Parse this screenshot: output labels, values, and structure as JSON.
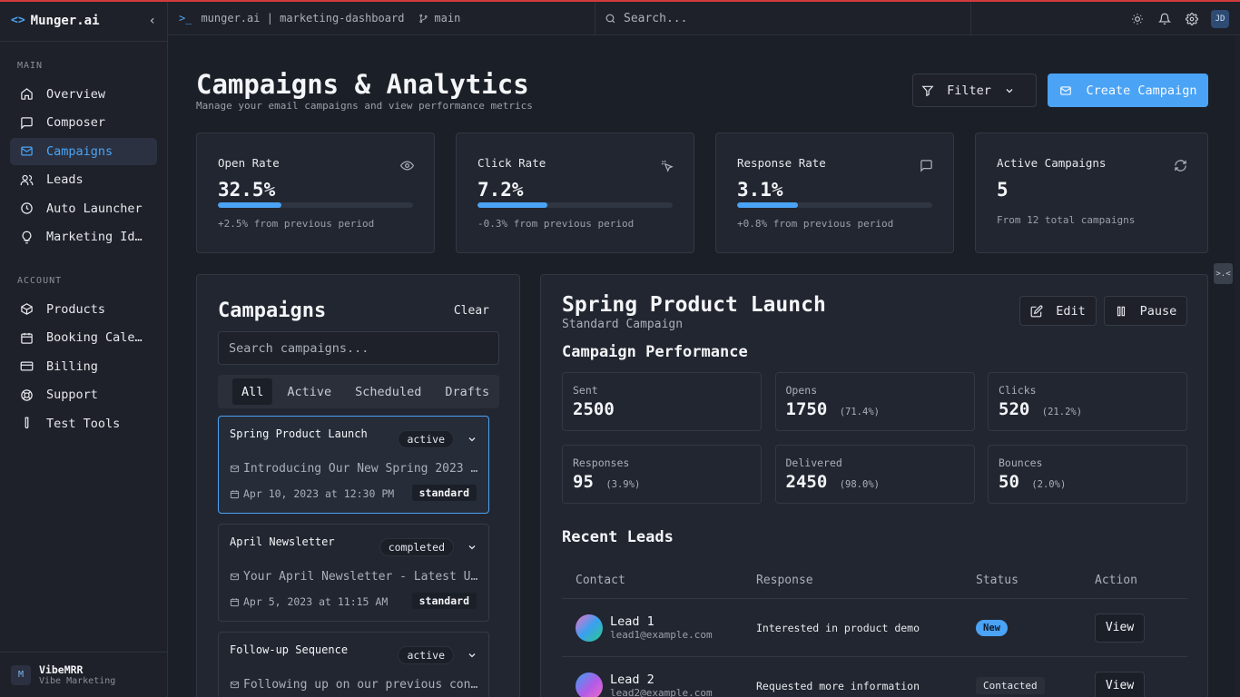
{
  "brand": {
    "name": "Munger.ai",
    "logo_icon": "code-brackets-icon"
  },
  "sidebar": {
    "main_heading": "MAIN",
    "main_items": [
      {
        "label": "Overview",
        "icon": "home-icon"
      },
      {
        "label": "Composer",
        "icon": "message-square-icon"
      },
      {
        "label": "Campaigns",
        "icon": "mail-icon",
        "active": true
      },
      {
        "label": "Leads",
        "icon": "users-icon"
      },
      {
        "label": "Auto Launcher",
        "icon": "clock-icon"
      },
      {
        "label": "Marketing Ide…",
        "icon": "lightbulb-icon"
      }
    ],
    "account_heading": "ACCOUNT",
    "account_items": [
      {
        "label": "Products",
        "icon": "box-icon"
      },
      {
        "label": "Booking Calen…",
        "icon": "calendar-icon"
      },
      {
        "label": "Billing",
        "icon": "credit-card-icon"
      },
      {
        "label": "Support",
        "icon": "lifebuoy-icon"
      },
      {
        "label": "Test Tools",
        "icon": "test-tube-icon"
      }
    ],
    "workspace": {
      "initial": "M",
      "name": "VibeMRR",
      "subtitle": "Vibe Marketing"
    }
  },
  "topbar": {
    "path": "munger.ai | marketing-dashboard",
    "branch": "main",
    "search_placeholder": "Search...",
    "user_initials": "JD"
  },
  "header": {
    "title": "Campaigns & Analytics",
    "subtitle": "Manage your email campaigns and view performance metrics",
    "filter_label": "Filter",
    "create_label": "Create Campaign"
  },
  "stats": [
    {
      "title": "Open Rate",
      "value": "32.5%",
      "progress": 0.325,
      "note": "+2.5% from previous period",
      "icon": "eye-icon"
    },
    {
      "title": "Click Rate",
      "value": "7.2%",
      "progress": 0.36,
      "note": "-0.3% from previous period",
      "icon": "pointer-click-icon"
    },
    {
      "title": "Response Rate",
      "value": "3.1%",
      "progress": 0.31,
      "note": "+0.8% from previous period",
      "icon": "message-square-icon"
    },
    {
      "title": "Active Campaigns",
      "value": "5",
      "note": "From 12 total campaigns",
      "icon": "refresh-icon"
    }
  ],
  "campaigns_panel": {
    "title": "Campaigns",
    "clear_label": "Clear",
    "search_placeholder": "Search campaigns...",
    "tabs": [
      "All",
      "Active",
      "Scheduled",
      "Drafts"
    ],
    "active_tab": "All",
    "items": [
      {
        "name": "Spring Product Launch",
        "status": "active",
        "subject": "Introducing Our New Spring 2023 …",
        "date": "Apr 10, 2023 at 12:30 PM",
        "type": "standard",
        "selected": true
      },
      {
        "name": "April Newsletter",
        "status": "completed",
        "subject": "Your April Newsletter - Latest U…",
        "date": "Apr 5, 2023 at 11:15 AM",
        "type": "standard"
      },
      {
        "name": "Follow-up Sequence",
        "status": "active",
        "subject": "Following up on our previous con…",
        "date": "",
        "type": ""
      }
    ]
  },
  "detail": {
    "title": "Spring Product Launch",
    "subtitle": "Standard Campaign",
    "edit_label": "Edit",
    "pause_label": "Pause",
    "performance_title": "Campaign Performance",
    "metrics": [
      {
        "label": "Sent",
        "value": "2500",
        "pct": ""
      },
      {
        "label": "Opens",
        "value": "1750",
        "pct": "(71.4%)"
      },
      {
        "label": "Clicks",
        "value": "520",
        "pct": "(21.2%)"
      },
      {
        "label": "Responses",
        "value": "95",
        "pct": "(3.9%)"
      },
      {
        "label": "Delivered",
        "value": "2450",
        "pct": "(98.0%)"
      },
      {
        "label": "Bounces",
        "value": "50",
        "pct": "(2.0%)"
      }
    ],
    "leads_title": "Recent Leads",
    "leads_columns": [
      "Contact",
      "Response",
      "Status",
      "Action"
    ],
    "leads": [
      {
        "name": "Lead 1",
        "email": "lead1@example.com",
        "response": "Interested in product demo",
        "status": "New",
        "action": "View"
      },
      {
        "name": "Lead 2",
        "email": "lead2@example.com",
        "response": "Requested more information",
        "status": "Contacted",
        "action": "View"
      }
    ]
  },
  "floater_label": ">.<",
  "colors": {
    "accent": "#4aa3f5",
    "background": "#1b1f27",
    "panel": "#222630",
    "top_line": "#d23b3b"
  }
}
